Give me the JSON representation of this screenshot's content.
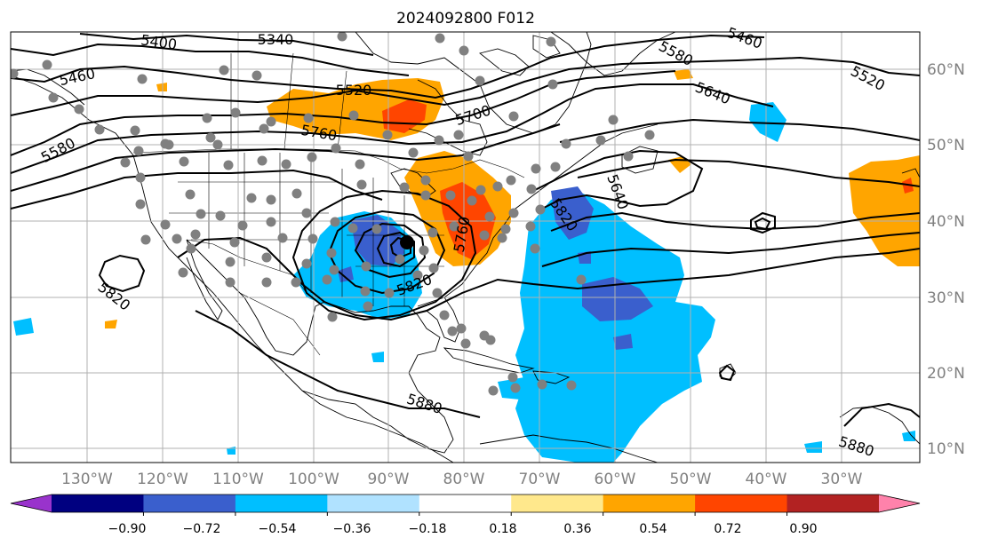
{
  "title": "2024092800 F012",
  "lat_labels": [
    "60°N",
    "50°N",
    "40°N",
    "30°N",
    "20°N",
    "10°N"
  ],
  "lon_labels": [
    "130°W",
    "120°W",
    "110°W",
    "100°W",
    "90°W",
    "80°W",
    "70°W",
    "60°W",
    "50°W",
    "40°W",
    "30°W"
  ],
  "contour_labels": [
    "5400",
    "5340",
    "5460",
    "5460",
    "5520",
    "5580",
    "5580",
    "5520",
    "5640",
    "5700",
    "5760",
    "5640",
    "5820",
    "5760",
    "5820",
    "5820",
    "5880",
    "5880"
  ],
  "colorbar": {
    "tick_labels": [
      "−0.90",
      "−0.72",
      "−0.54",
      "−0.36",
      "−0.18",
      "0.18",
      "0.36",
      "0.54",
      "0.72",
      "0.90"
    ],
    "colors": [
      "#9933cc",
      "#000080",
      "#3a5fcd",
      "#00bfff",
      "#b0e2ff",
      "#ffffff",
      "#ffe88c",
      "#ffa500",
      "#ff4500",
      "#b22222",
      "#ff82ab"
    ],
    "extend": "both"
  },
  "colors": {
    "land_outline": "#000000",
    "contour": "#000000",
    "station_dot": "#808080",
    "cyclone_center": "#000000",
    "grid": "#b0b0b0"
  },
  "icons": {
    "stations": "gray-dot",
    "cyclone": "black-dot"
  }
}
